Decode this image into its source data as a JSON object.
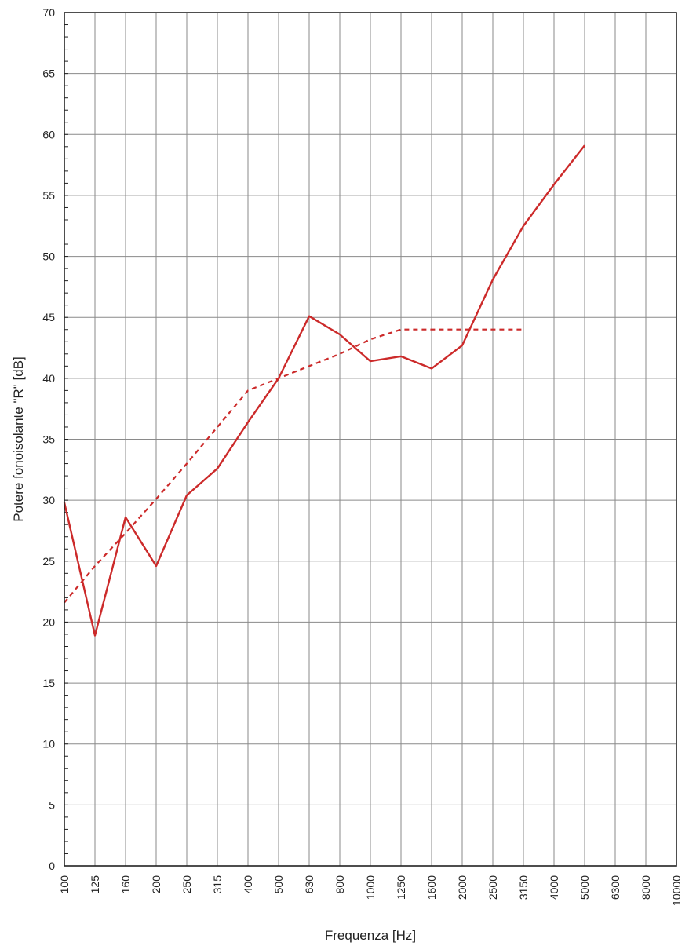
{
  "chart_data": {
    "type": "line",
    "title": "",
    "xlabel": "Frequenza [Hz]",
    "ylabel": "Potere fonoisolante \"R\" [dB]",
    "categories": [
      "100",
      "125",
      "160",
      "200",
      "250",
      "315",
      "400",
      "500",
      "630",
      "800",
      "1000",
      "1250",
      "1600",
      "2000",
      "2500",
      "3150",
      "4000",
      "5000",
      "6300",
      "8000",
      "10000"
    ],
    "ylim": [
      0,
      70
    ],
    "yticks": [
      "0",
      "5",
      "10",
      "15",
      "20",
      "25",
      "30",
      "35",
      "40",
      "45",
      "50",
      "55",
      "60",
      "65",
      "70"
    ],
    "grid": true,
    "series": [
      {
        "style": "solid",
        "color": "#cc2a2a",
        "values": [
          29.8,
          18.9,
          28.6,
          24.6,
          30.4,
          32.6,
          36.4,
          40.0,
          45.1,
          43.6,
          41.4,
          41.8,
          40.8,
          42.7,
          48.1,
          52.5,
          55.9,
          59.1,
          null,
          null,
          null
        ]
      },
      {
        "style": "dashed",
        "color": "#cc2a2a",
        "values": [
          21.6,
          24.6,
          27.3,
          30.1,
          33.0,
          36.0,
          39.0,
          40.0,
          41.0,
          42.0,
          43.2,
          44.0,
          44.0,
          44.0,
          44.0,
          44.0,
          null,
          null,
          null,
          null,
          null
        ]
      }
    ]
  }
}
